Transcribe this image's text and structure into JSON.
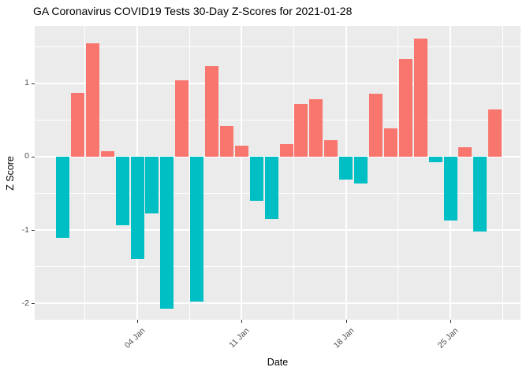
{
  "chart_data": {
    "type": "bar",
    "title": "GA Coronavirus COVID19 Tests 30-Day Z-Scores for 2021-01-28",
    "xlabel": "Date",
    "ylabel": "Z Score",
    "categories": [
      "2020-12-30",
      "2020-12-31",
      "2021-01-01",
      "2021-01-02",
      "2021-01-03",
      "2021-01-04",
      "2021-01-05",
      "2021-01-06",
      "2021-01-07",
      "2021-01-08",
      "2021-01-09",
      "2021-01-10",
      "2021-01-11",
      "2021-01-12",
      "2021-01-13",
      "2021-01-14",
      "2021-01-15",
      "2021-01-16",
      "2021-01-17",
      "2021-01-18",
      "2021-01-19",
      "2021-01-20",
      "2021-01-21",
      "2021-01-22",
      "2021-01-23",
      "2021-01-24",
      "2021-01-25",
      "2021-01-26",
      "2021-01-27",
      "2021-01-28"
    ],
    "values": [
      -1.11,
      0.87,
      1.54,
      0.07,
      -0.93,
      -1.39,
      -0.77,
      -2.07,
      1.04,
      -1.97,
      1.23,
      0.42,
      0.15,
      -0.6,
      -0.85,
      0.17,
      0.72,
      0.78,
      0.23,
      -0.31,
      -0.37,
      0.86,
      0.39,
      1.33,
      1.61,
      -0.08,
      -0.87,
      0.13,
      -1.02,
      0.64
    ],
    "x_ticks": [
      {
        "label": "04 Jan",
        "index": 5
      },
      {
        "label": "11 Jan",
        "index": 12
      },
      {
        "label": "18 Jan",
        "index": 19
      },
      {
        "label": "25 Jan",
        "index": 26
      }
    ],
    "y_ticks": [
      1,
      0,
      -1,
      -2
    ],
    "y_minor_ticks": [
      1.5,
      0.5,
      -0.5,
      -1.5
    ],
    "ylim": [
      -2.22,
      1.78
    ],
    "grid": true,
    "legend_position": "none",
    "positive_color": "#F8766D",
    "negative_color": "#00BFC4",
    "panel_background": "#EBEBEB",
    "grid_color": "#FFFFFF",
    "axis_text_color": "#4D4D4D",
    "tick_mark_color": "#333333"
  }
}
